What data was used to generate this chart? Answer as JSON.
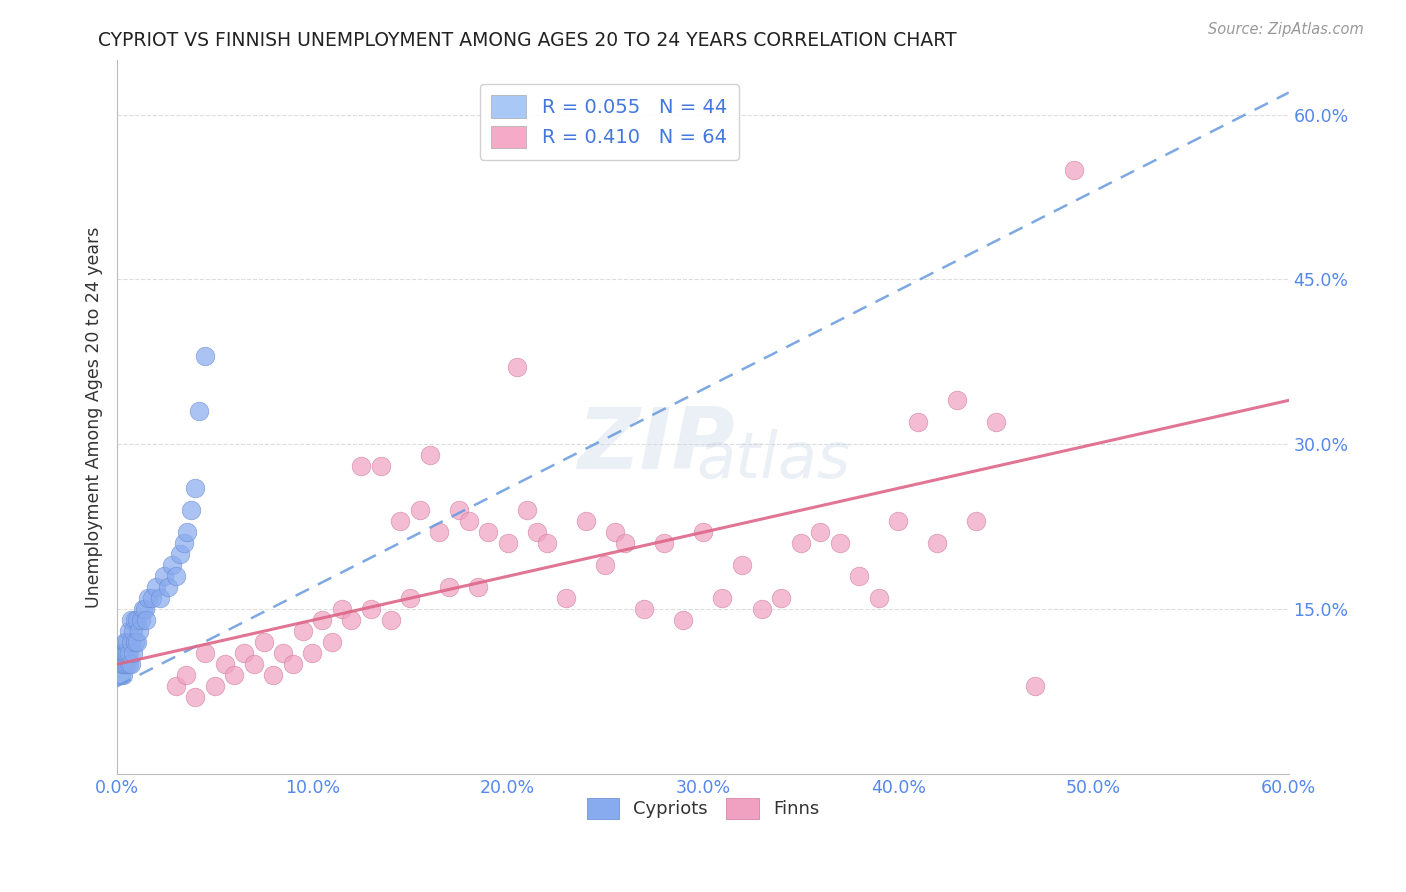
{
  "title": "CYPRIOT VS FINNISH UNEMPLOYMENT AMONG AGES 20 TO 24 YEARS CORRELATION CHART",
  "source": "Source: ZipAtlas.com",
  "tick_color": "#5588ee",
  "ylabel": "Unemployment Among Ages 20 to 24 years",
  "xlim": [
    0.0,
    0.6
  ],
  "ylim": [
    0.0,
    0.65
  ],
  "x_ticks": [
    0.0,
    0.1,
    0.2,
    0.3,
    0.4,
    0.5,
    0.6
  ],
  "x_tick_labels": [
    "0.0%",
    "10.0%",
    "20.0%",
    "30.0%",
    "40.0%",
    "50.0%",
    "60.0%"
  ],
  "y_ticks_right": [
    0.15,
    0.3,
    0.45,
    0.6
  ],
  "y_tick_labels_right": [
    "15.0%",
    "30.0%",
    "45.0%",
    "60.0%"
  ],
  "legend_entries": [
    {
      "label_r": "R = 0.055",
      "label_n": "N = 44",
      "color": "#aac8f5"
    },
    {
      "label_r": "R = 0.410",
      "label_n": "N = 64",
      "color": "#f5aac8"
    }
  ],
  "legend_labels_bottom": [
    "Cypriots",
    "Finns"
  ],
  "cypriot_color": "#88aaee",
  "finn_color": "#f0a0c0",
  "cypriot_edge_color": "#6688cc",
  "finn_edge_color": "#cc7799",
  "cypriot_trend_color": "#6699dd",
  "finn_trend_color": "#dd6688",
  "watermark_zip": "ZIP",
  "watermark_atlas": "atlas",
  "background_color": "#ffffff",
  "grid_color": "#dddddd",
  "cypriot_x": [
    0.002,
    0.002,
    0.002,
    0.003,
    0.003,
    0.003,
    0.004,
    0.004,
    0.004,
    0.005,
    0.005,
    0.005,
    0.006,
    0.006,
    0.006,
    0.007,
    0.007,
    0.007,
    0.008,
    0.008,
    0.009,
    0.009,
    0.01,
    0.01,
    0.011,
    0.012,
    0.013,
    0.014,
    0.015,
    0.016,
    0.018,
    0.02,
    0.022,
    0.024,
    0.026,
    0.028,
    0.03,
    0.032,
    0.034,
    0.036,
    0.038,
    0.04,
    0.042,
    0.045
  ],
  "cypriot_y": [
    0.09,
    0.1,
    0.11,
    0.09,
    0.1,
    0.11,
    0.1,
    0.11,
    0.12,
    0.1,
    0.11,
    0.12,
    0.1,
    0.11,
    0.13,
    0.1,
    0.12,
    0.14,
    0.11,
    0.13,
    0.12,
    0.14,
    0.12,
    0.14,
    0.13,
    0.14,
    0.15,
    0.15,
    0.14,
    0.16,
    0.16,
    0.17,
    0.16,
    0.18,
    0.17,
    0.19,
    0.18,
    0.2,
    0.21,
    0.22,
    0.24,
    0.26,
    0.33,
    0.38
  ],
  "finn_x": [
    0.03,
    0.035,
    0.04,
    0.045,
    0.05,
    0.055,
    0.06,
    0.065,
    0.07,
    0.075,
    0.08,
    0.085,
    0.09,
    0.095,
    0.1,
    0.105,
    0.11,
    0.115,
    0.12,
    0.125,
    0.13,
    0.135,
    0.14,
    0.145,
    0.15,
    0.155,
    0.16,
    0.165,
    0.17,
    0.175,
    0.18,
    0.185,
    0.19,
    0.2,
    0.205,
    0.21,
    0.215,
    0.22,
    0.23,
    0.24,
    0.25,
    0.255,
    0.26,
    0.27,
    0.28,
    0.29,
    0.3,
    0.31,
    0.32,
    0.33,
    0.34,
    0.35,
    0.36,
    0.37,
    0.38,
    0.39,
    0.4,
    0.41,
    0.42,
    0.43,
    0.44,
    0.45,
    0.47,
    0.49
  ],
  "finn_y": [
    0.08,
    0.09,
    0.07,
    0.11,
    0.08,
    0.1,
    0.09,
    0.11,
    0.1,
    0.12,
    0.09,
    0.11,
    0.1,
    0.13,
    0.11,
    0.14,
    0.12,
    0.15,
    0.14,
    0.28,
    0.15,
    0.28,
    0.14,
    0.23,
    0.16,
    0.24,
    0.29,
    0.22,
    0.17,
    0.24,
    0.23,
    0.17,
    0.22,
    0.21,
    0.37,
    0.24,
    0.22,
    0.21,
    0.16,
    0.23,
    0.19,
    0.22,
    0.21,
    0.15,
    0.21,
    0.14,
    0.22,
    0.16,
    0.19,
    0.15,
    0.16,
    0.21,
    0.22,
    0.21,
    0.18,
    0.16,
    0.23,
    0.32,
    0.21,
    0.34,
    0.23,
    0.32,
    0.08,
    0.55
  ]
}
